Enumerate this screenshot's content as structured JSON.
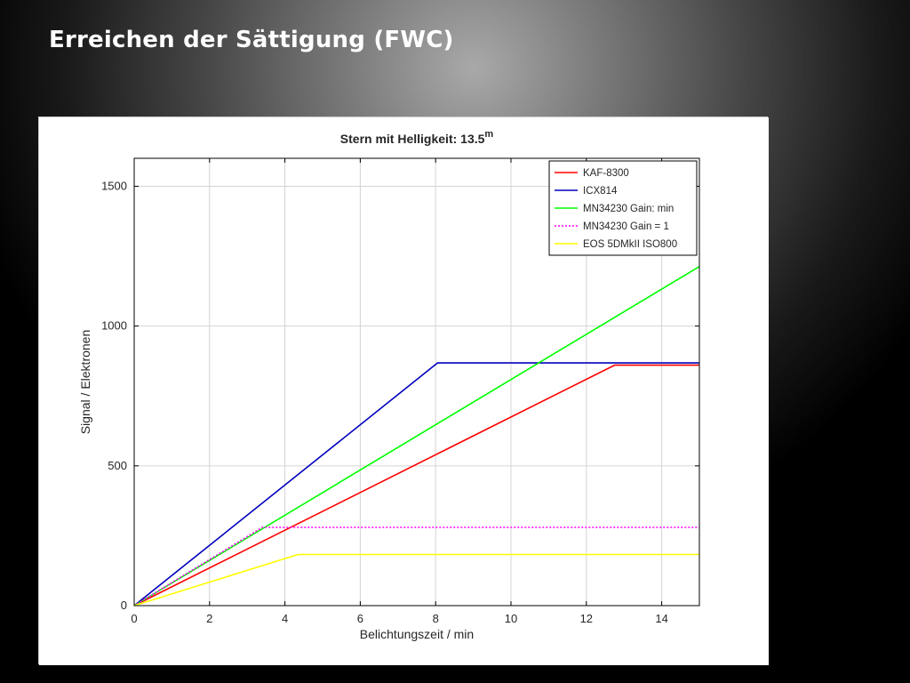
{
  "slide": {
    "title": "Erreichen der Sättigung (FWC)"
  },
  "chart_data": {
    "type": "line",
    "title": "Stern mit Helligkeit: 13.5",
    "title_superscript": "m",
    "xlabel": "Belichtungszeit / min",
    "ylabel": "Signal / Elektronen",
    "xlim": [
      0,
      15
    ],
    "ylim": [
      0,
      1600
    ],
    "xticks": [
      0,
      2,
      4,
      6,
      8,
      10,
      12,
      14
    ],
    "yticks": [
      0,
      500,
      1000,
      1500
    ],
    "grid": true,
    "legend_position": "top-right",
    "series": [
      {
        "name": "KAF-8300",
        "color": "#ff0000",
        "dash": "solid",
        "points": [
          [
            0,
            0
          ],
          [
            12.75,
            860
          ],
          [
            15,
            860
          ]
        ]
      },
      {
        "name": "ICX814",
        "color": "#0000bb",
        "dash": "solid",
        "points": [
          [
            0,
            0
          ],
          [
            8.05,
            868
          ],
          [
            15,
            868
          ]
        ]
      },
      {
        "name": "MN34230 Gain: min",
        "color": "#00ff00",
        "dash": "solid",
        "points": [
          [
            0,
            0
          ],
          [
            15,
            1213
          ]
        ]
      },
      {
        "name": "MN34230 Gain = 1",
        "color": "#ff00ff",
        "dash": "dotted",
        "points": [
          [
            0,
            0
          ],
          [
            3.4,
            280
          ],
          [
            15,
            280
          ]
        ]
      },
      {
        "name": "EOS 5DMkII ISO800",
        "color": "#ffff00",
        "dash": "solid",
        "points": [
          [
            0,
            0
          ],
          [
            4.35,
            183
          ],
          [
            15,
            183
          ]
        ]
      }
    ]
  }
}
